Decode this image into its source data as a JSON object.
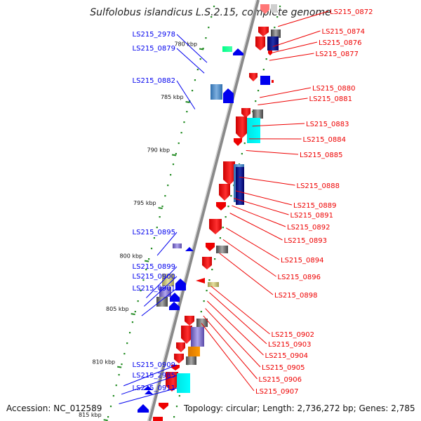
{
  "title": "Sulfolobus islandicus L.S.2.15, complete genome",
  "footer": {
    "accession": "Accession: NC_012589",
    "summary": "Topology: circular; Length: 2,736,272 bp; Genes: 2,785"
  },
  "ticks": [
    {
      "label": "780 kbp",
      "kb": 780
    },
    {
      "label": "785 kbp",
      "kb": 785
    },
    {
      "label": "790 kbp",
      "kb": 790
    },
    {
      "label": "795 kbp",
      "kb": 795
    },
    {
      "label": "800 kbp",
      "kb": 800
    },
    {
      "label": "805 kbp",
      "kb": 805
    },
    {
      "label": "810 kbp",
      "kb": 810
    },
    {
      "label": "815 kbp",
      "kb": 815
    }
  ],
  "genes_left": [
    {
      "label": "LS215_2978",
      "kb": 781.3,
      "color": "#0000ee"
    },
    {
      "label": "LS215_0879",
      "kb": 782.3,
      "color": "#0000ee"
    },
    {
      "label": "LS215_0882",
      "kb": 785.7,
      "color": "#0000ee"
    },
    {
      "label": "LS215_0895",
      "kb": 799.5,
      "color": "#0000ee"
    },
    {
      "label": "LS215_0899",
      "kb": 803.5,
      "color": "#0000ee"
    },
    {
      "label": "LS215_0900",
      "kb": 804.3,
      "color": "#0000ee"
    },
    {
      "label": "LS215_0901",
      "kb": 805.2,
      "color": "#0000ee"
    },
    {
      "label": "LS215_0909",
      "kb": 811.8,
      "color": "#0000ee"
    },
    {
      "label": "LS215_2985",
      "kb": 812.6,
      "color": "#0000ee"
    },
    {
      "label": "LS215_0911",
      "kb": 813.5,
      "color": "#0000ee"
    }
  ],
  "genes_right": [
    {
      "label": "LS215_0872",
      "kb": 777.9,
      "color": "#ee0000"
    },
    {
      "label": "LS215_0874",
      "kb": 779.8,
      "color": "#ee0000"
    },
    {
      "label": "LS215_0876",
      "kb": 780.4,
      "color": "#ee0000"
    },
    {
      "label": "LS215_0877",
      "kb": 781.1,
      "color": "#ee0000"
    },
    {
      "label": "LS215_0880",
      "kb": 784.6,
      "color": "#ee0000"
    },
    {
      "label": "LS215_0881",
      "kb": 785.3,
      "color": "#ee0000"
    },
    {
      "label": "LS215_0883",
      "kb": 787.3,
      "color": "#ee0000"
    },
    {
      "label": "LS215_0884",
      "kb": 788.5,
      "color": "#ee0000"
    },
    {
      "label": "LS215_0885",
      "kb": 789.6,
      "color": "#ee0000"
    },
    {
      "label": "LS215_0888",
      "kb": 792.1,
      "color": "#ee0000"
    },
    {
      "label": "LS215_0889",
      "kb": 793.4,
      "color": "#ee0000"
    },
    {
      "label": "LS215_0891",
      "kb": 794.1,
      "color": "#ee0000"
    },
    {
      "label": "LS215_0892",
      "kb": 794.8,
      "color": "#ee0000"
    },
    {
      "label": "LS215_0893",
      "kb": 795.5,
      "color": "#ee0000"
    },
    {
      "label": "LS215_0894",
      "kb": 796.9,
      "color": "#ee0000"
    },
    {
      "label": "LS215_0896",
      "kb": 798.0,
      "color": "#ee0000"
    },
    {
      "label": "LS215_0898",
      "kb": 799.3,
      "color": "#ee0000"
    },
    {
      "label": "LS215_0902",
      "kb": 802.4,
      "color": "#ee0000"
    },
    {
      "label": "LS215_0903",
      "kb": 803.0,
      "color": "#ee0000"
    },
    {
      "label": "LS215_0904",
      "kb": 803.8,
      "color": "#ee0000"
    },
    {
      "label": "LS215_0905",
      "kb": 804.5,
      "color": "#ee0000"
    },
    {
      "label": "LS215_0906",
      "kb": 805.2,
      "color": "#ee0000"
    },
    {
      "label": "LS215_0907",
      "kb": 805.9,
      "color": "#ee0000"
    }
  ],
  "colors": {
    "backbone": "#8a8a8a",
    "forward_strand": "#ee0000",
    "reverse_strand": "#0000ee",
    "gc_dots": "#228b22",
    "tick": "#228b22"
  }
}
